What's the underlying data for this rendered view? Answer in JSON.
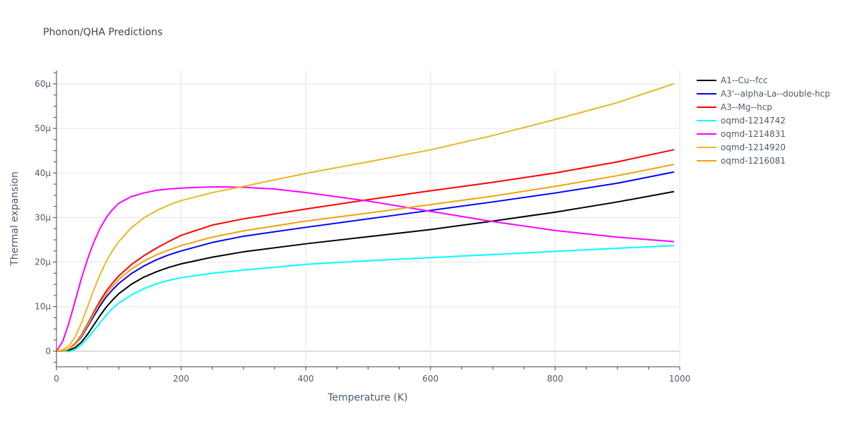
{
  "chart_data": {
    "type": "line",
    "title": "Phonon/QHA Predictions",
    "xlabel": "Temperature (K)",
    "ylabel": "Thermal expansion",
    "xlim": [
      0,
      1000
    ],
    "ylim": [
      -3.5e-06,
      6.3e-05
    ],
    "x_ticks": [
      {
        "value": 0,
        "label": "0"
      },
      {
        "value": 200,
        "label": "200"
      },
      {
        "value": 400,
        "label": "400"
      },
      {
        "value": 600,
        "label": "600"
      },
      {
        "value": 800,
        "label": "800"
      },
      {
        "value": 1000,
        "label": "1000"
      }
    ],
    "y_ticks": [
      {
        "value": 0,
        "label": "0"
      },
      {
        "value": 1e-05,
        "label": "10μ"
      },
      {
        "value": 2e-05,
        "label": "20μ"
      },
      {
        "value": 3e-05,
        "label": "30μ"
      },
      {
        "value": 4e-05,
        "label": "40μ"
      },
      {
        "value": 5e-05,
        "label": "50μ"
      },
      {
        "value": 6e-05,
        "label": "60μ"
      }
    ],
    "grid": true,
    "legend_position": "right",
    "series": [
      {
        "name": "A1--Cu--fcc",
        "color": "#000000",
        "x": [
          0,
          10,
          20,
          30,
          40,
          50,
          60,
          70,
          80,
          90,
          100,
          120,
          140,
          160,
          180,
          200,
          250,
          300,
          400,
          500,
          600,
          700,
          800,
          900,
          990
        ],
        "y": [
          0,
          0,
          2e-07,
          8e-07,
          2e-06,
          3.8e-06,
          5.9e-06,
          8e-06,
          9.9e-06,
          1.15e-05,
          1.29e-05,
          1.5e-05,
          1.66e-05,
          1.78e-05,
          1.88e-05,
          1.96e-05,
          2.11e-05,
          2.23e-05,
          2.41e-05,
          2.57e-05,
          2.73e-05,
          2.92e-05,
          3.12e-05,
          3.35e-05,
          3.58e-05
        ]
      },
      {
        "name": "A3'--alpha-La--double-hcp",
        "color": "#0000ff",
        "x": [
          0,
          10,
          20,
          30,
          40,
          50,
          60,
          70,
          80,
          90,
          100,
          120,
          140,
          160,
          180,
          200,
          250,
          300,
          400,
          500,
          600,
          700,
          800,
          900,
          990
        ],
        "y": [
          0,
          0,
          5e-07,
          1.5e-06,
          3.2e-06,
          5.5e-06,
          7.9e-06,
          1.02e-05,
          1.22e-05,
          1.38e-05,
          1.52e-05,
          1.74e-05,
          1.91e-05,
          2.05e-05,
          2.16e-05,
          2.25e-05,
          2.44e-05,
          2.58e-05,
          2.78e-05,
          2.97e-05,
          3.16e-05,
          3.35e-05,
          3.55e-05,
          3.77e-05,
          4.02e-05
        ]
      },
      {
        "name": "A3--Mg--hcp",
        "color": "#ff0000",
        "x": [
          0,
          10,
          20,
          30,
          40,
          50,
          60,
          70,
          80,
          90,
          100,
          120,
          140,
          160,
          180,
          200,
          250,
          300,
          400,
          500,
          600,
          700,
          800,
          900,
          990
        ],
        "y": [
          0,
          0,
          5e-07,
          1.7e-06,
          3.6e-06,
          6.1e-06,
          8.8e-06,
          1.13e-05,
          1.35e-05,
          1.53e-05,
          1.69e-05,
          1.94e-05,
          2.14e-05,
          2.31e-05,
          2.46e-05,
          2.6e-05,
          2.83e-05,
          2.97e-05,
          3.19e-05,
          3.4e-05,
          3.6e-05,
          3.79e-05,
          4e-05,
          4.25e-05,
          4.52e-05
        ]
      },
      {
        "name": "oqmd-1214742",
        "color": "#00ffff",
        "x": [
          0,
          10,
          20,
          30,
          40,
          50,
          60,
          70,
          80,
          90,
          100,
          120,
          140,
          160,
          180,
          200,
          250,
          300,
          400,
          500,
          600,
          700,
          800,
          900,
          990
        ],
        "y": [
          0,
          0,
          -1e-07,
          4e-07,
          1.4e-06,
          2.9e-06,
          4.6e-06,
          6.4e-06,
          8.1e-06,
          9.6e-06,
          1.08e-05,
          1.26e-05,
          1.4e-05,
          1.51e-05,
          1.59e-05,
          1.65e-05,
          1.75e-05,
          1.82e-05,
          1.95e-05,
          2.03e-05,
          2.1e-05,
          2.17e-05,
          2.24e-05,
          2.31e-05,
          2.37e-05
        ]
      },
      {
        "name": "oqmd-1214831",
        "color": "#ff00ff",
        "x": [
          0,
          10,
          20,
          30,
          40,
          50,
          60,
          70,
          80,
          90,
          100,
          120,
          140,
          160,
          180,
          200,
          230,
          260,
          300,
          350,
          400,
          500,
          600,
          700,
          800,
          900,
          990
        ],
        "y": [
          0,
          2.2e-06,
          6.3e-06,
          1.13e-05,
          1.63e-05,
          2.07e-05,
          2.45e-05,
          2.76e-05,
          3e-05,
          3.18e-05,
          3.32e-05,
          3.47e-05,
          3.55e-05,
          3.61e-05,
          3.64e-05,
          3.66e-05,
          3.68e-05,
          3.69e-05,
          3.68e-05,
          3.64e-05,
          3.56e-05,
          3.37e-05,
          3.14e-05,
          2.91e-05,
          2.71e-05,
          2.56e-05,
          2.46e-05
        ]
      },
      {
        "name": "oqmd-1214920",
        "color": "#e8b822",
        "x": [
          0,
          10,
          20,
          30,
          40,
          50,
          60,
          70,
          80,
          90,
          100,
          120,
          140,
          160,
          180,
          200,
          250,
          300,
          400,
          500,
          600,
          700,
          800,
          900,
          990
        ],
        "y": [
          0,
          3e-07,
          1.2e-06,
          3.2e-06,
          6.3e-06,
          1e-05,
          1.38e-05,
          1.72e-05,
          2.02e-05,
          2.26e-05,
          2.46e-05,
          2.77e-05,
          2.99e-05,
          3.15e-05,
          3.28e-05,
          3.38e-05,
          3.56e-05,
          3.7e-05,
          3.99e-05,
          4.25e-05,
          4.52e-05,
          4.84e-05,
          5.2e-05,
          5.58e-05,
          6e-05
        ]
      },
      {
        "name": "oqmd-1216081",
        "color": "#f0a30a",
        "x": [
          0,
          10,
          20,
          30,
          40,
          50,
          60,
          70,
          80,
          90,
          100,
          120,
          140,
          160,
          180,
          200,
          250,
          300,
          400,
          500,
          600,
          700,
          800,
          900,
          990
        ],
        "y": [
          0,
          0,
          5e-07,
          1.5e-06,
          3.4e-06,
          5.8e-06,
          8.4e-06,
          1.08e-05,
          1.29e-05,
          1.46e-05,
          1.61e-05,
          1.84e-05,
          2.02e-05,
          2.16e-05,
          2.27e-05,
          2.37e-05,
          2.56e-05,
          2.7e-05,
          2.92e-05,
          3.1e-05,
          3.29e-05,
          3.48e-05,
          3.7e-05,
          3.94e-05,
          4.19e-05
        ]
      }
    ]
  }
}
